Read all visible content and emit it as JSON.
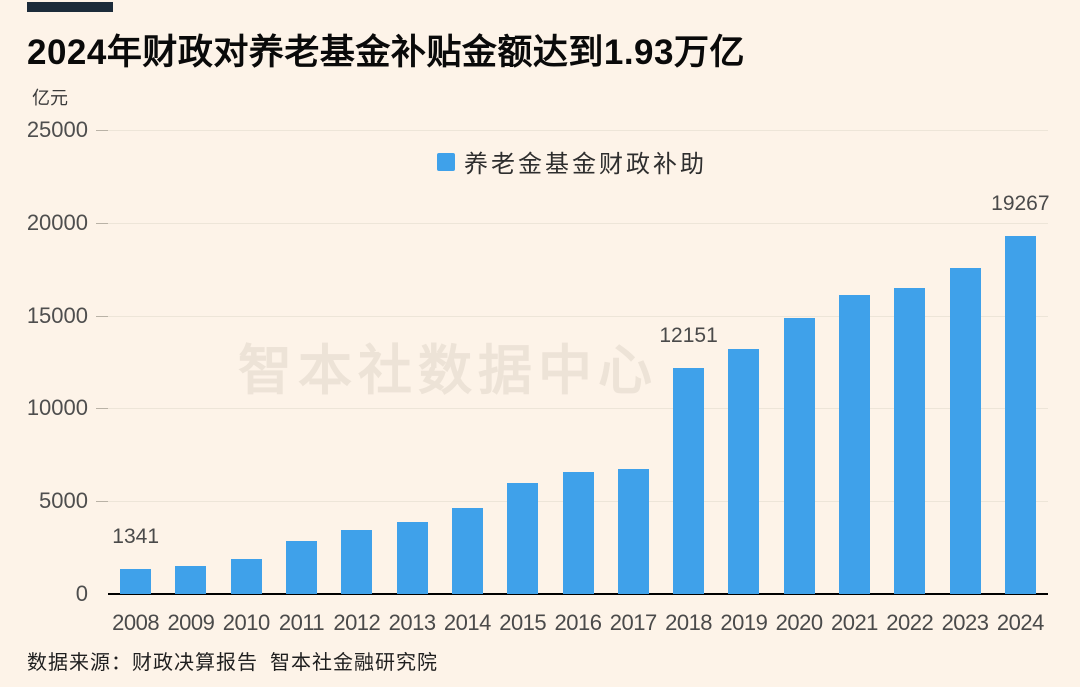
{
  "header": {
    "title": "2024年财政对养老基金补贴金额达到1.93万亿",
    "unit_label": "亿元",
    "accent_color": "#1C2B3A"
  },
  "legend": {
    "label": "养老金基金财政补助",
    "marker_color": "#3FA1EA"
  },
  "watermark": "智本社数据中心",
  "footer": {
    "source": "数据来源：财政决算报告  智本社金融研究院"
  },
  "colors": {
    "background": "#FDF3E8",
    "bar": "#3FA1EA",
    "axis_line": "#000000",
    "gridline": "#EDE5D8",
    "axis_text": "#4E4E4E"
  },
  "chart_data": {
    "type": "bar",
    "title": "2024年财政对养老基金补贴金额达到1.93万亿",
    "xlabel": "",
    "ylabel": "亿元",
    "legend_entries": [
      "养老金基金财政补助"
    ],
    "legend_position": "top-center",
    "grid": true,
    "ylim": [
      0,
      25000
    ],
    "yticks": [
      0,
      5000,
      10000,
      15000,
      20000,
      25000
    ],
    "categories": [
      "2008",
      "2009",
      "2010",
      "2011",
      "2012",
      "2013",
      "2014",
      "2015",
      "2016",
      "2017",
      "2018",
      "2019",
      "2020",
      "2021",
      "2022",
      "2023",
      "2024"
    ],
    "values": [
      1341,
      1520,
      1860,
      2830,
      3430,
      3900,
      4620,
      6000,
      6600,
      6760,
      12151,
      13200,
      14870,
      16100,
      16500,
      17550,
      19267
    ],
    "value_labels_shown": {
      "2008": "1341",
      "2018": "12151",
      "2024": "19267"
    }
  }
}
